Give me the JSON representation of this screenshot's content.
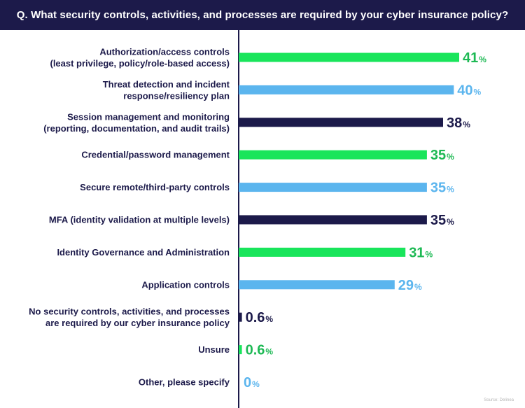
{
  "header": {
    "question": "Q. What security controls, activities, and processes are required by your cyber insurance policy?"
  },
  "source": "Source: Delinea",
  "colors": {
    "green": "#19e55b",
    "green_text": "#1db954",
    "blue": "#5bb5ee",
    "navy": "#1c1a4a"
  },
  "chart_data": {
    "type": "bar",
    "orientation": "horizontal",
    "title": "Q. What security controls, activities, and processes are required by your cyber insurance policy?",
    "unit": "%",
    "xlim": [
      0,
      41
    ],
    "categories": [
      [
        "Authorization/access controls",
        "(least privilege, policy/role-based access)"
      ],
      [
        "Threat detection and incident",
        "response/resiliency plan"
      ],
      [
        "Session management and monitoring",
        "(reporting, documentation, and audit trails)"
      ],
      [
        "Credential/password management"
      ],
      [
        "Secure remote/third-party controls"
      ],
      [
        "MFA (identity validation at multiple levels)"
      ],
      [
        "Identity Governance and Administration"
      ],
      [
        "Application controls"
      ],
      [
        "No security controls, activities, and processes",
        "are required by our cyber insurance policy"
      ],
      [
        "Unsure"
      ],
      [
        "Other, please specify"
      ]
    ],
    "values": [
      41,
      40,
      38,
      35,
      35,
      35,
      31,
      29,
      0.6,
      0.6,
      0
    ],
    "value_labels": [
      "41",
      "40",
      "38",
      "35",
      "35",
      "35",
      "31",
      "29",
      "0.6",
      "0.6",
      "0"
    ],
    "bar_colors": [
      "green",
      "blue",
      "navy",
      "green",
      "blue",
      "navy",
      "green",
      "blue",
      "navy",
      "green",
      "blue"
    ]
  }
}
